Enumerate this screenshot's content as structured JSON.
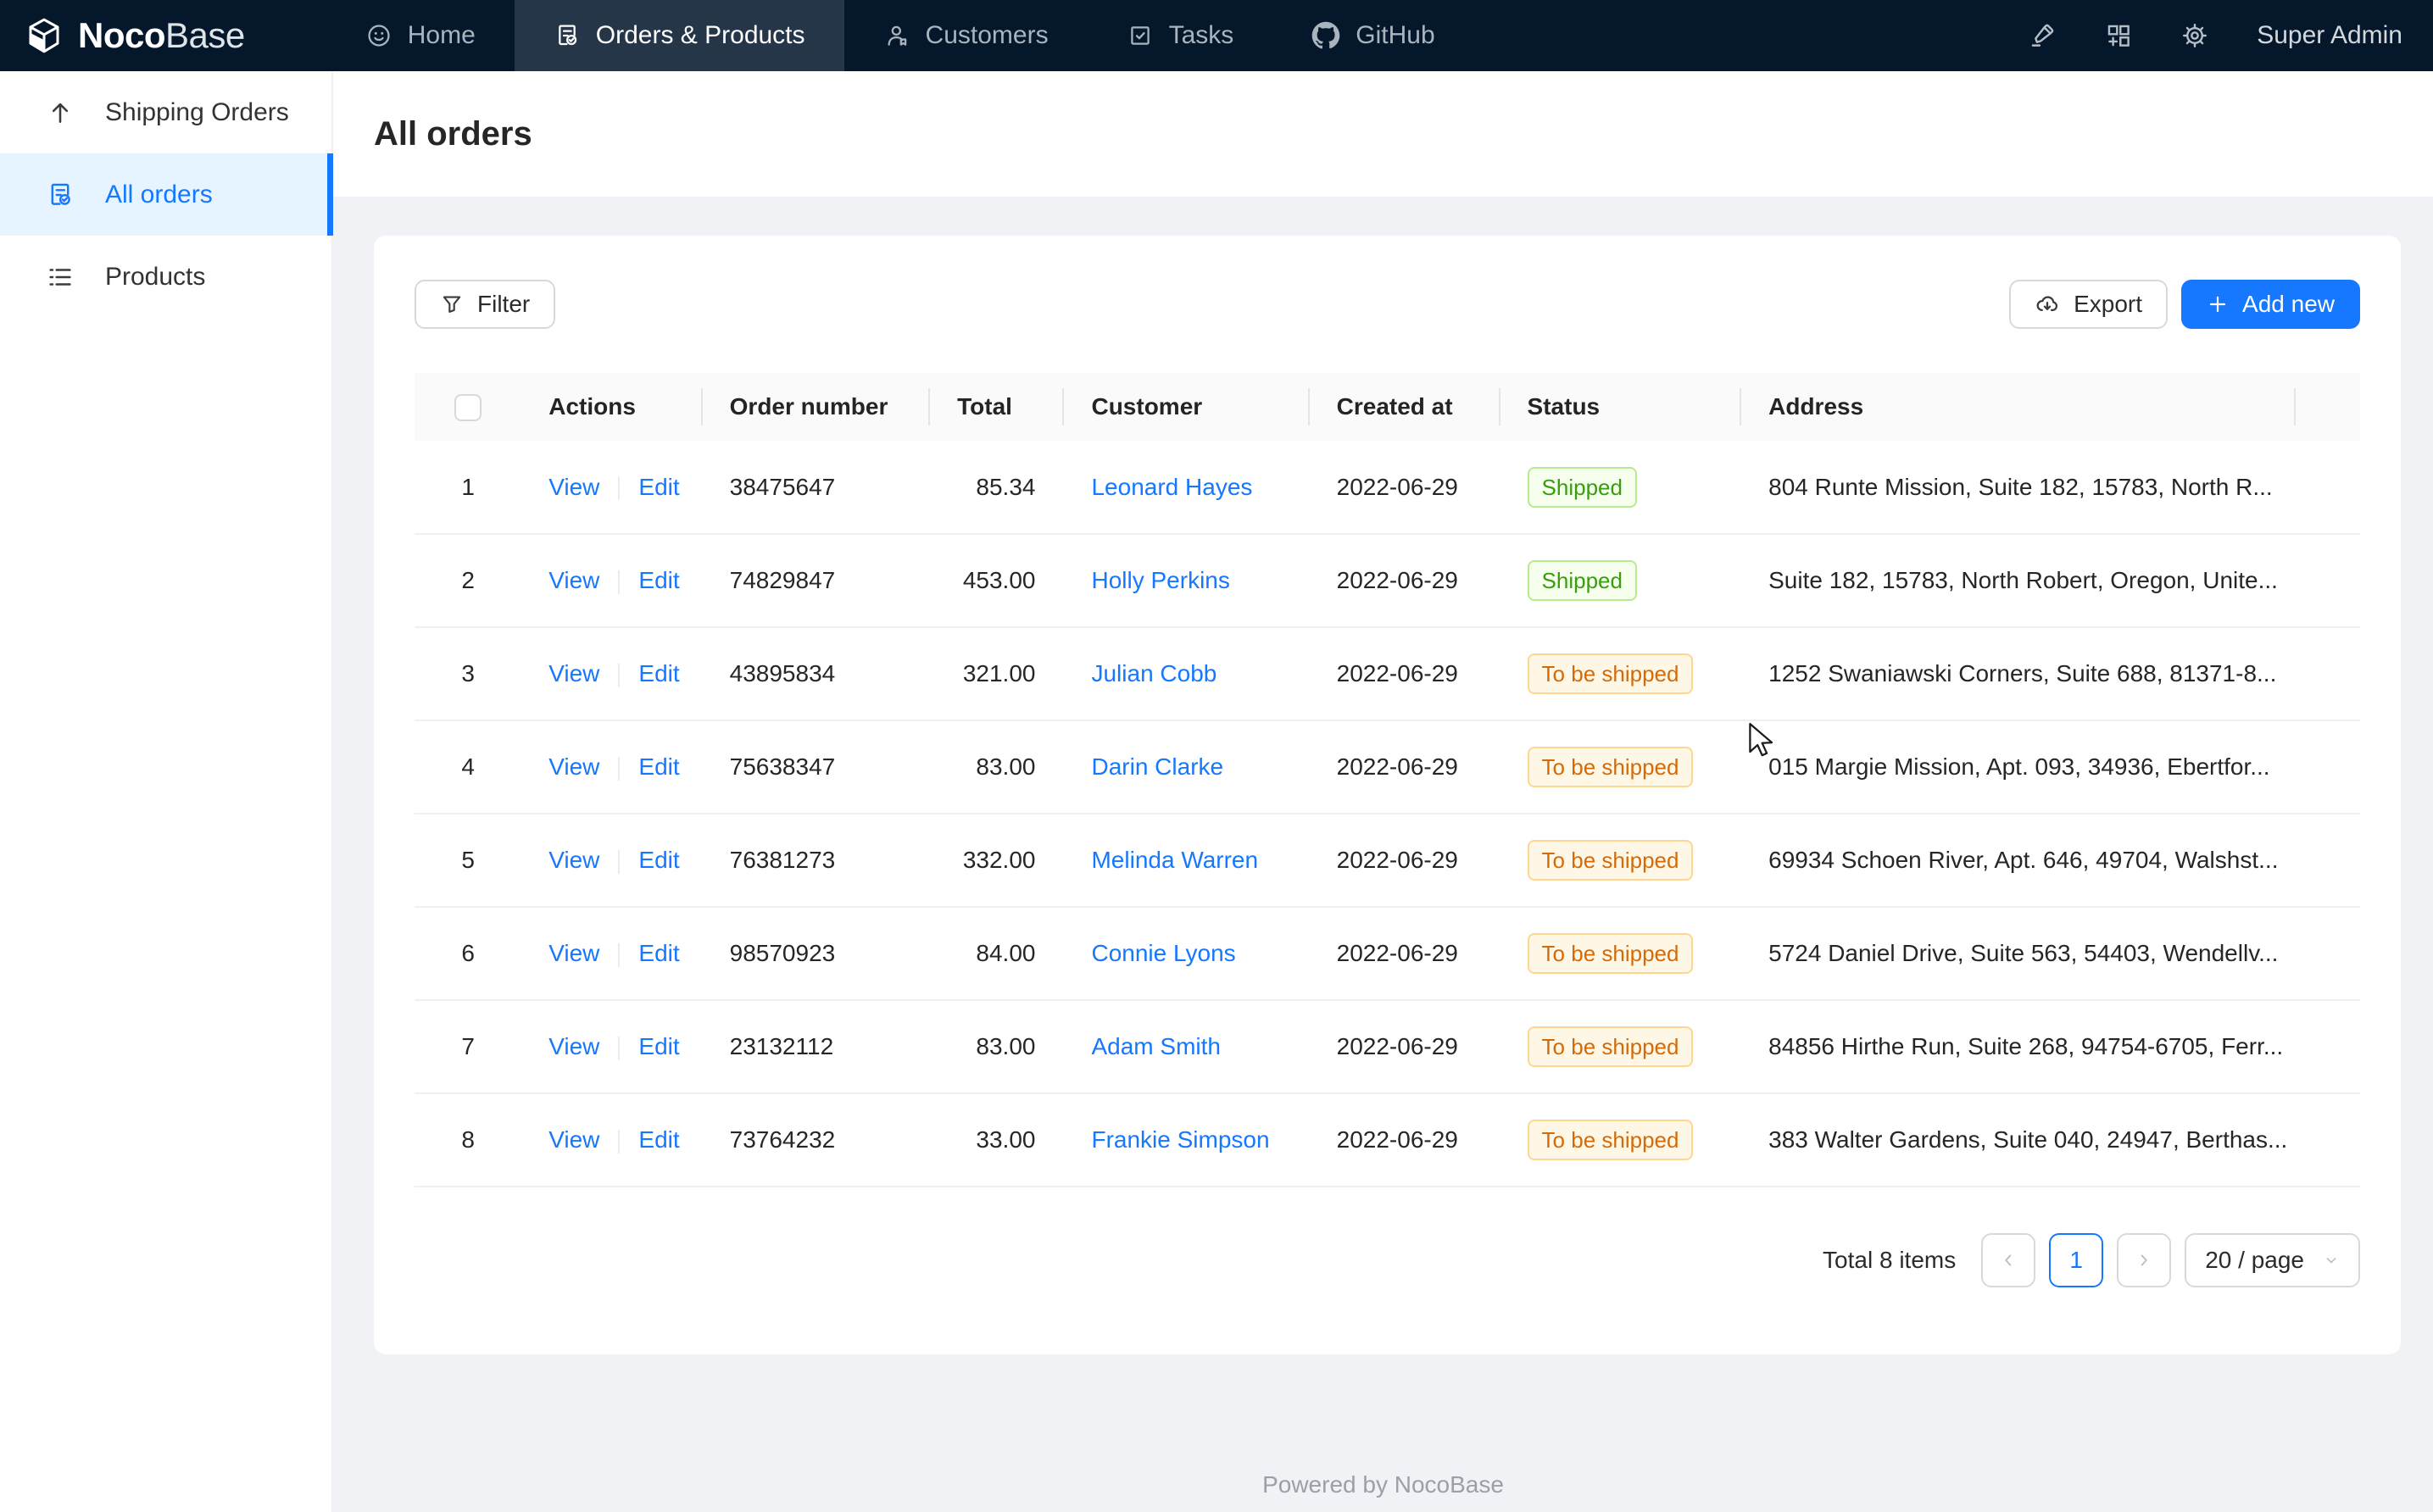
{
  "nav": {
    "logo_bold": "Noco",
    "logo_light": "Base",
    "items": [
      {
        "label": "Home"
      },
      {
        "label": "Orders & Products"
      },
      {
        "label": "Customers"
      },
      {
        "label": "Tasks"
      },
      {
        "label": "GitHub"
      }
    ],
    "user": "Super Admin"
  },
  "sidebar": {
    "items": [
      {
        "label": "Shipping Orders"
      },
      {
        "label": "All orders"
      },
      {
        "label": "Products"
      }
    ]
  },
  "page": {
    "title": "All orders"
  },
  "toolbar": {
    "filter_label": "Filter",
    "export_label": "Export",
    "add_new_label": "Add new"
  },
  "table": {
    "columns": [
      "Actions",
      "Order number",
      "Total",
      "Customer",
      "Created at",
      "Status",
      "Address"
    ],
    "action_view": "View",
    "action_edit": "Edit",
    "rows": [
      {
        "index": "1",
        "order_number": "38475647",
        "total": "85.34",
        "customer": "Leonard Hayes",
        "created_at": "2022-06-29",
        "status": "Shipped",
        "status_type": "green",
        "address": "804 Runte Mission, Suite 182, 15783, North R..."
      },
      {
        "index": "2",
        "order_number": "74829847",
        "total": "453.00",
        "customer": "Holly Perkins",
        "created_at": "2022-06-29",
        "status": "Shipped",
        "status_type": "green",
        "address": "Suite 182, 15783, North Robert, Oregon, Unite..."
      },
      {
        "index": "3",
        "order_number": "43895834",
        "total": "321.00",
        "customer": "Julian Cobb",
        "created_at": "2022-06-29",
        "status": "To be shipped",
        "status_type": "orange",
        "address": "1252 Swaniawski Corners, Suite 688, 81371-8..."
      },
      {
        "index": "4",
        "order_number": "75638347",
        "total": "83.00",
        "customer": "Darin Clarke",
        "created_at": "2022-06-29",
        "status": "To be shipped",
        "status_type": "orange",
        "address": "015 Margie Mission, Apt. 093, 34936, Ebertfor..."
      },
      {
        "index": "5",
        "order_number": "76381273",
        "total": "332.00",
        "customer": "Melinda Warren",
        "created_at": "2022-06-29",
        "status": "To be shipped",
        "status_type": "orange",
        "address": "69934 Schoen River, Apt. 646, 49704, Walshst..."
      },
      {
        "index": "6",
        "order_number": "98570923",
        "total": "84.00",
        "customer": "Connie Lyons",
        "created_at": "2022-06-29",
        "status": "To be shipped",
        "status_type": "orange",
        "address": "5724 Daniel Drive, Suite 563, 54403, Wendellv..."
      },
      {
        "index": "7",
        "order_number": "23132112",
        "total": "83.00",
        "customer": "Adam Smith",
        "created_at": "2022-06-29",
        "status": "To be shipped",
        "status_type": "orange",
        "address": "84856 Hirthe Run, Suite 268, 94754-6705, Ferr..."
      },
      {
        "index": "8",
        "order_number": "73764232",
        "total": "33.00",
        "customer": "Frankie Simpson",
        "created_at": "2022-06-29",
        "status": "To be shipped",
        "status_type": "orange",
        "address": "383 Walter Gardens, Suite 040, 24947, Berthas..."
      }
    ]
  },
  "pagination": {
    "total_text": "Total 8 items",
    "current_page": "1",
    "page_size": "20 / page"
  },
  "footer": {
    "text": "Powered by NocoBase"
  },
  "colors": {
    "accent": "#1677ff",
    "nav_bg": "#05172b",
    "nav_active_bg": "#253649",
    "sidebar_active_bg": "#e6f4ff",
    "status_green_text": "#389e0d",
    "status_green_bg": "#f6ffed",
    "status_green_border": "#b7eb8f",
    "status_orange_text": "#d46b08",
    "status_orange_bg": "#fff7e6",
    "status_orange_border": "#ffd591"
  }
}
